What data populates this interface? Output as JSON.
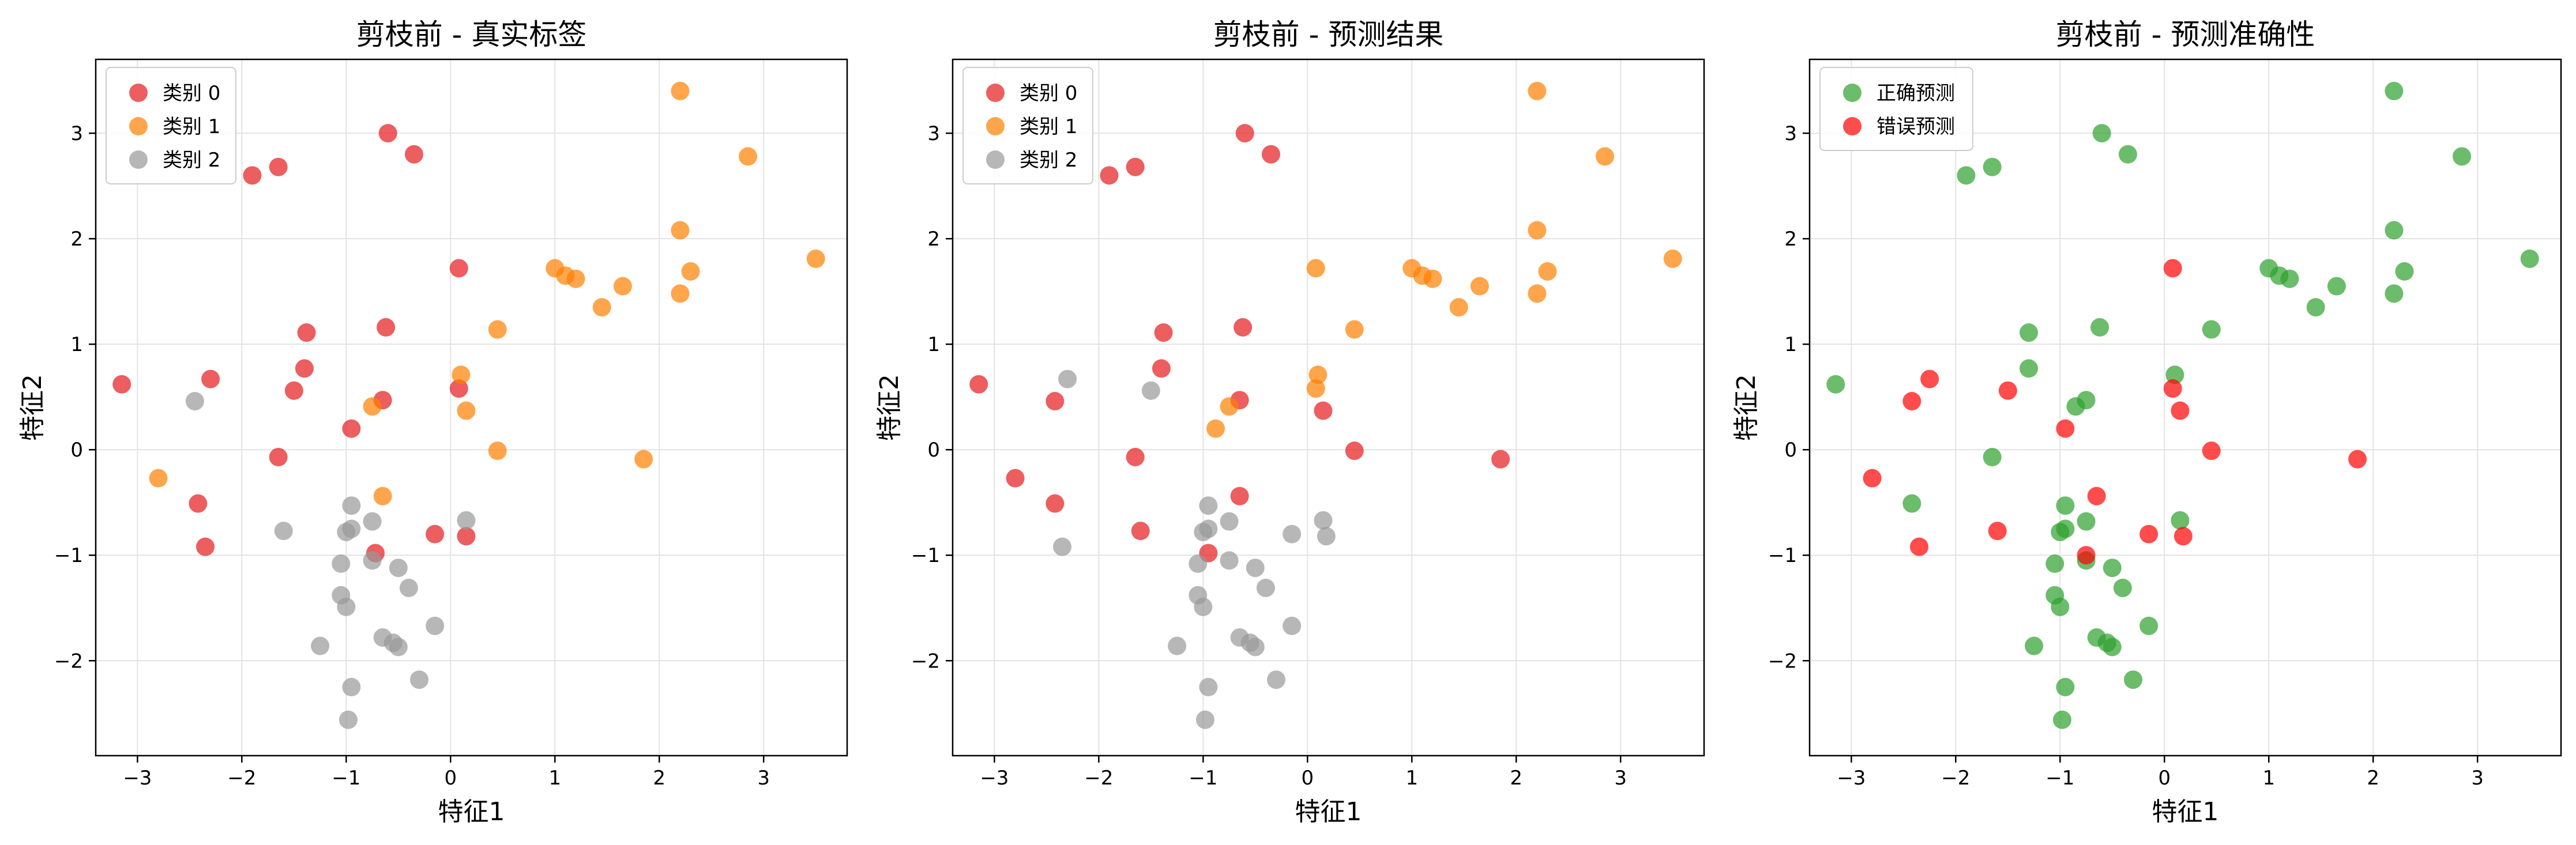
{
  "chart_data": [
    {
      "type": "scatter",
      "title": "剪枝前 - 真实标签",
      "xlabel": "特征1",
      "ylabel": "特征2",
      "xlim": [
        -3.4,
        3.8
      ],
      "ylim": [
        -2.9,
        3.7
      ],
      "xticks": [
        -3,
        -2,
        -1,
        0,
        1,
        2,
        3
      ],
      "yticks": [
        -2,
        -1,
        0,
        1,
        2,
        3
      ],
      "grid": true,
      "legend_position": "top-left",
      "series": [
        {
          "name": "类别 0",
          "color": "#e41a1c",
          "points": [
            [
              -3.15,
              0.62
            ],
            [
              -2.3,
              0.67
            ],
            [
              -2.42,
              -0.51
            ],
            [
              -2.35,
              -0.92
            ],
            [
              -1.9,
              2.6
            ],
            [
              -1.65,
              2.68
            ],
            [
              -0.6,
              3.0
            ],
            [
              -0.35,
              2.8
            ],
            [
              -1.38,
              1.11
            ],
            [
              -1.4,
              0.77
            ],
            [
              -1.5,
              0.56
            ],
            [
              -1.65,
              -0.07
            ],
            [
              -0.95,
              0.2
            ],
            [
              -0.65,
              0.47
            ],
            [
              -0.62,
              1.16
            ],
            [
              0.08,
              1.72
            ],
            [
              0.08,
              0.58
            ],
            [
              -0.15,
              -0.8
            ],
            [
              0.15,
              -0.82
            ],
            [
              -0.72,
              -0.98
            ]
          ]
        },
        {
          "name": "类别 1",
          "color": "#ff7f00",
          "points": [
            [
              2.2,
              3.4
            ],
            [
              2.85,
              2.78
            ],
            [
              3.5,
              1.81
            ],
            [
              2.2,
              2.08
            ],
            [
              1.0,
              1.72
            ],
            [
              1.1,
              1.65
            ],
            [
              1.2,
              1.62
            ],
            [
              1.45,
              1.35
            ],
            [
              1.65,
              1.55
            ],
            [
              2.2,
              1.48
            ],
            [
              2.3,
              1.69
            ],
            [
              0.45,
              1.14
            ],
            [
              0.1,
              0.71
            ],
            [
              0.15,
              0.37
            ],
            [
              0.45,
              -0.01
            ],
            [
              1.85,
              -0.09
            ],
            [
              -0.75,
              0.41
            ],
            [
              -0.65,
              -0.44
            ],
            [
              -2.8,
              -0.27
            ]
          ]
        },
        {
          "name": "类别 2",
          "color": "#999999",
          "points": [
            [
              -2.45,
              0.46
            ],
            [
              -1.6,
              -0.77
            ],
            [
              -0.95,
              -0.53
            ],
            [
              -1.0,
              -0.78
            ],
            [
              -0.95,
              -0.75
            ],
            [
              -0.75,
              -0.68
            ],
            [
              -0.75,
              -1.05
            ],
            [
              -1.05,
              -1.08
            ],
            [
              -0.5,
              -1.12
            ],
            [
              -1.05,
              -1.38
            ],
            [
              -1.0,
              -1.49
            ],
            [
              -0.4,
              -1.31
            ],
            [
              -1.25,
              -1.86
            ],
            [
              -0.65,
              -1.78
            ],
            [
              -0.55,
              -1.83
            ],
            [
              -0.5,
              -1.87
            ],
            [
              -0.15,
              -1.67
            ],
            [
              -0.95,
              -2.25
            ],
            [
              -0.3,
              -2.18
            ],
            [
              -0.98,
              -2.56
            ],
            [
              0.15,
              -0.67
            ]
          ]
        }
      ]
    },
    {
      "type": "scatter",
      "title": "剪枝前 - 预测结果",
      "xlabel": "特征1",
      "ylabel": "特征2",
      "xlim": [
        -3.4,
        3.8
      ],
      "ylim": [
        -2.9,
        3.7
      ],
      "xticks": [
        -3,
        -2,
        -1,
        0,
        1,
        2,
        3
      ],
      "yticks": [
        -2,
        -1,
        0,
        1,
        2,
        3
      ],
      "grid": true,
      "legend_position": "top-left",
      "series": [
        {
          "name": "类别 0",
          "color": "#e41a1c",
          "points": [
            [
              -3.15,
              0.62
            ],
            [
              -2.8,
              -0.27
            ],
            [
              -2.42,
              0.46
            ],
            [
              -2.42,
              -0.51
            ],
            [
              -1.9,
              2.6
            ],
            [
              -1.65,
              2.68
            ],
            [
              -0.6,
              3.0
            ],
            [
              -0.35,
              2.8
            ],
            [
              -1.38,
              1.11
            ],
            [
              -1.4,
              0.77
            ],
            [
              -1.65,
              -0.07
            ],
            [
              -1.6,
              -0.77
            ],
            [
              -0.65,
              0.47
            ],
            [
              -0.62,
              1.16
            ],
            [
              0.15,
              0.37
            ],
            [
              0.45,
              -0.01
            ],
            [
              1.85,
              -0.09
            ],
            [
              -0.65,
              -0.44
            ],
            [
              -0.95,
              -0.98
            ]
          ]
        },
        {
          "name": "类别 1",
          "color": "#ff7f00",
          "points": [
            [
              2.2,
              3.4
            ],
            [
              2.85,
              2.78
            ],
            [
              3.5,
              1.81
            ],
            [
              2.2,
              2.08
            ],
            [
              0.08,
              1.72
            ],
            [
              1.0,
              1.72
            ],
            [
              1.1,
              1.65
            ],
            [
              1.2,
              1.62
            ],
            [
              1.45,
              1.35
            ],
            [
              1.65,
              1.55
            ],
            [
              2.2,
              1.48
            ],
            [
              2.3,
              1.69
            ],
            [
              0.45,
              1.14
            ],
            [
              0.1,
              0.71
            ],
            [
              0.08,
              0.58
            ],
            [
              -0.75,
              0.41
            ],
            [
              -0.88,
              0.2
            ]
          ]
        },
        {
          "name": "类别 2",
          "color": "#999999",
          "points": [
            [
              -2.3,
              0.67
            ],
            [
              -1.5,
              0.56
            ],
            [
              -2.35,
              -0.92
            ],
            [
              -0.95,
              -0.53
            ],
            [
              -1.0,
              -0.78
            ],
            [
              -0.95,
              -0.75
            ],
            [
              -0.75,
              -0.68
            ],
            [
              -0.75,
              -1.05
            ],
            [
              -1.05,
              -1.08
            ],
            [
              -0.5,
              -1.12
            ],
            [
              -1.05,
              -1.38
            ],
            [
              -1.0,
              -1.49
            ],
            [
              -0.4,
              -1.31
            ],
            [
              -1.25,
              -1.86
            ],
            [
              -0.65,
              -1.78
            ],
            [
              -0.55,
              -1.83
            ],
            [
              -0.5,
              -1.87
            ],
            [
              -0.15,
              -1.67
            ],
            [
              -0.95,
              -2.25
            ],
            [
              -0.3,
              -2.18
            ],
            [
              -0.98,
              -2.56
            ],
            [
              0.15,
              -0.67
            ],
            [
              0.18,
              -0.82
            ],
            [
              -0.15,
              -0.8
            ]
          ]
        }
      ]
    },
    {
      "type": "scatter",
      "title": "剪枝前 - 预测准确性",
      "xlabel": "特征1",
      "ylabel": "特征2",
      "xlim": [
        -3.4,
        3.8
      ],
      "ylim": [
        -2.9,
        3.7
      ],
      "xticks": [
        -3,
        -2,
        -1,
        0,
        1,
        2,
        3
      ],
      "yticks": [
        -2,
        -1,
        0,
        1,
        2,
        3
      ],
      "grid": true,
      "legend_position": "top-left",
      "series": [
        {
          "name": "正确预测",
          "color": "#2ca02c",
          "points": [
            [
              -3.15,
              0.62
            ],
            [
              -1.9,
              2.6
            ],
            [
              -1.65,
              2.68
            ],
            [
              -0.6,
              3.0
            ],
            [
              -0.35,
              2.8
            ],
            [
              -1.3,
              1.11
            ],
            [
              -1.3,
              0.77
            ],
            [
              -1.65,
              -0.07
            ],
            [
              -2.42,
              -0.51
            ],
            [
              -0.85,
              0.41
            ],
            [
              -0.75,
              0.47
            ],
            [
              -0.62,
              1.16
            ],
            [
              0.1,
              0.71
            ],
            [
              0.45,
              1.14
            ],
            [
              2.2,
              3.4
            ],
            [
              2.85,
              2.78
            ],
            [
              3.5,
              1.81
            ],
            [
              2.2,
              2.08
            ],
            [
              1.0,
              1.72
            ],
            [
              1.1,
              1.65
            ],
            [
              1.2,
              1.62
            ],
            [
              1.45,
              1.35
            ],
            [
              1.65,
              1.55
            ],
            [
              2.2,
              1.48
            ],
            [
              2.3,
              1.69
            ],
            [
              -0.95,
              -0.53
            ],
            [
              -1.0,
              -0.78
            ],
            [
              -0.95,
              -0.75
            ],
            [
              -0.75,
              -0.68
            ],
            [
              -0.75,
              -1.05
            ],
            [
              -1.05,
              -1.08
            ],
            [
              -0.5,
              -1.12
            ],
            [
              -1.05,
              -1.38
            ],
            [
              -1.0,
              -1.49
            ],
            [
              -0.4,
              -1.31
            ],
            [
              -1.25,
              -1.86
            ],
            [
              -0.65,
              -1.78
            ],
            [
              -0.55,
              -1.83
            ],
            [
              -0.5,
              -1.87
            ],
            [
              -0.15,
              -1.67
            ],
            [
              -0.95,
              -2.25
            ],
            [
              -0.3,
              -2.18
            ],
            [
              -0.98,
              -2.56
            ],
            [
              0.15,
              -0.67
            ]
          ]
        },
        {
          "name": "错误预测",
          "color": "#ff0000",
          "points": [
            [
              -2.8,
              -0.27
            ],
            [
              -2.42,
              0.46
            ],
            [
              -2.25,
              0.67
            ],
            [
              -2.35,
              -0.92
            ],
            [
              -1.5,
              0.56
            ],
            [
              -1.6,
              -0.77
            ],
            [
              -0.95,
              0.2
            ],
            [
              -0.65,
              -0.44
            ],
            [
              -0.75,
              -1.0
            ],
            [
              0.08,
              1.72
            ],
            [
              0.08,
              0.58
            ],
            [
              0.15,
              0.37
            ],
            [
              0.45,
              -0.01
            ],
            [
              1.85,
              -0.09
            ],
            [
              -0.15,
              -0.8
            ],
            [
              0.18,
              -0.82
            ]
          ]
        }
      ]
    }
  ]
}
